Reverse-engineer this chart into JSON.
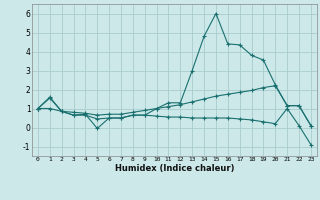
{
  "title": "",
  "xlabel": "Humidex (Indice chaleur)",
  "background_color": "#cce8e8",
  "grid_color": "#aacccc",
  "line_color": "#1a7070",
  "xlim": [
    -0.5,
    23.5
  ],
  "ylim": [
    -1.5,
    6.5
  ],
  "xtick_labels": [
    "0",
    "1",
    "2",
    "3",
    "4",
    "5",
    "6",
    "7",
    "8",
    "9",
    "10",
    "11",
    "12",
    "13",
    "14",
    "15",
    "16",
    "17",
    "18",
    "19",
    "20",
    "21",
    "22",
    "23"
  ],
  "yticks": [
    -1,
    0,
    1,
    2,
    3,
    4,
    5,
    6
  ],
  "series1": [
    [
      0,
      1.0
    ],
    [
      1,
      1.6
    ],
    [
      2,
      0.85
    ],
    [
      3,
      0.65
    ],
    [
      4,
      0.7
    ],
    [
      5,
      -0.05
    ],
    [
      6,
      0.5
    ],
    [
      7,
      0.5
    ],
    [
      8,
      0.65
    ],
    [
      9,
      0.65
    ],
    [
      10,
      1.0
    ],
    [
      11,
      1.3
    ],
    [
      12,
      1.3
    ],
    [
      13,
      3.0
    ],
    [
      14,
      4.8
    ],
    [
      15,
      6.0
    ],
    [
      16,
      4.4
    ],
    [
      17,
      4.35
    ],
    [
      18,
      3.8
    ],
    [
      19,
      3.55
    ],
    [
      20,
      2.25
    ],
    [
      21,
      1.15
    ],
    [
      22,
      1.15
    ],
    [
      23,
      0.1
    ]
  ],
  "series2": [
    [
      0,
      1.0
    ],
    [
      1,
      1.55
    ],
    [
      2,
      0.85
    ],
    [
      3,
      0.8
    ],
    [
      4,
      0.75
    ],
    [
      5,
      0.65
    ],
    [
      6,
      0.7
    ],
    [
      7,
      0.7
    ],
    [
      8,
      0.8
    ],
    [
      9,
      0.9
    ],
    [
      10,
      1.0
    ],
    [
      11,
      1.1
    ],
    [
      12,
      1.2
    ],
    [
      13,
      1.35
    ],
    [
      14,
      1.5
    ],
    [
      15,
      1.65
    ],
    [
      16,
      1.75
    ],
    [
      17,
      1.85
    ],
    [
      18,
      1.95
    ],
    [
      19,
      2.1
    ],
    [
      20,
      2.2
    ],
    [
      21,
      1.15
    ],
    [
      22,
      1.15
    ],
    [
      23,
      0.1
    ]
  ],
  "series3": [
    [
      0,
      1.0
    ],
    [
      1,
      1.0
    ],
    [
      2,
      0.85
    ],
    [
      3,
      0.65
    ],
    [
      4,
      0.65
    ],
    [
      5,
      0.45
    ],
    [
      6,
      0.5
    ],
    [
      7,
      0.5
    ],
    [
      8,
      0.65
    ],
    [
      9,
      0.65
    ],
    [
      10,
      0.6
    ],
    [
      11,
      0.55
    ],
    [
      12,
      0.55
    ],
    [
      13,
      0.5
    ],
    [
      14,
      0.5
    ],
    [
      15,
      0.5
    ],
    [
      16,
      0.5
    ],
    [
      17,
      0.45
    ],
    [
      18,
      0.4
    ],
    [
      19,
      0.3
    ],
    [
      20,
      0.2
    ],
    [
      21,
      1.0
    ],
    [
      22,
      0.1
    ],
    [
      23,
      -0.9
    ]
  ]
}
